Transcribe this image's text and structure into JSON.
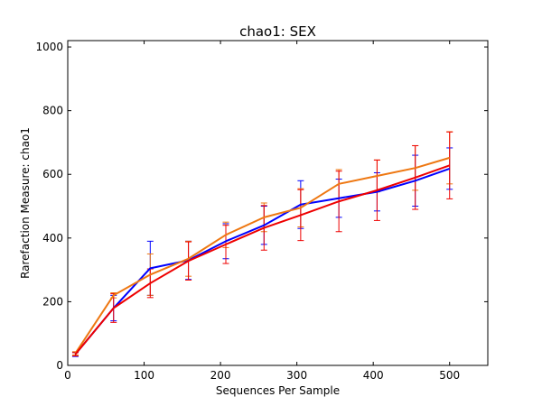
{
  "chart_data": {
    "type": "line",
    "title": "chao1: SEX",
    "xlabel": "Sequences Per Sample",
    "ylabel": "Rarefaction Measure: chao1",
    "xlim": [
      0,
      550
    ],
    "ylim": [
      0,
      1020
    ],
    "xticks": [
      0,
      100,
      200,
      300,
      400,
      500
    ],
    "yticks": [
      0,
      200,
      400,
      600,
      800,
      1000
    ],
    "grid": false,
    "legend": "none",
    "x": [
      10,
      60,
      108,
      158,
      207,
      257,
      305,
      355,
      405,
      455,
      500
    ],
    "series": [
      {
        "color": "#0000ff",
        "values": [
          35,
          180,
          305,
          330,
          390,
          440,
          505,
          525,
          545,
          580,
          618
        ],
        "errors": [
          7,
          40,
          85,
          60,
          55,
          60,
          75,
          60,
          60,
          80,
          65
        ]
      },
      {
        "color": "#ee7711",
        "values": [
          38,
          220,
          285,
          335,
          410,
          465,
          495,
          570,
          595,
          620,
          652
        ],
        "errors": [
          5,
          8,
          65,
          55,
          40,
          45,
          60,
          45,
          50,
          70,
          82
        ]
      },
      {
        "color": "#ee0000",
        "values": [
          35,
          180,
          258,
          328,
          380,
          432,
          472,
          515,
          550,
          590,
          628
        ],
        "errors": [
          5,
          45,
          45,
          60,
          60,
          70,
          80,
          95,
          95,
          100,
          105
        ]
      }
    ]
  }
}
